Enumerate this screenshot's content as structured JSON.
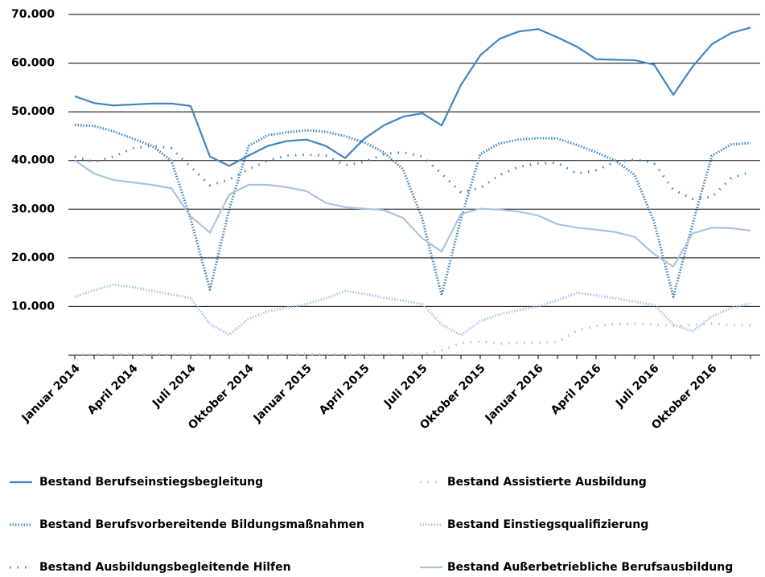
{
  "chart_data": {
    "type": "line",
    "categories": [
      "Januar 2014",
      null,
      null,
      "April 2014",
      null,
      null,
      "Juli 2014",
      null,
      null,
      "Oktober 2014",
      null,
      null,
      "Januar 2015",
      null,
      null,
      "April 2015",
      null,
      null,
      "Juli 2015",
      null,
      null,
      "Oktober 2015",
      null,
      null,
      "Januar 2016",
      null,
      null,
      "April 2016",
      null,
      null,
      "Juli 2016",
      null,
      null,
      "Oktober 2016",
      null,
      null
    ],
    "ylim": [
      0,
      70000
    ],
    "yticks": [
      {
        "value": 10000,
        "label": "10.000"
      },
      {
        "value": 20000,
        "label": "20.000"
      },
      {
        "value": 30000,
        "label": "30.000"
      },
      {
        "value": 40000,
        "label": "40.000"
      },
      {
        "value": 50000,
        "label": "50.000"
      },
      {
        "value": 60000,
        "label": "60.000"
      },
      {
        "value": 70000,
        "label": "70.000"
      }
    ],
    "grid": true,
    "series": [
      {
        "name": "Bestand Berufseinstiegsbegleitung",
        "color": "#3f86c1",
        "style": "solid",
        "values": [
          53200,
          51800,
          51300,
          51500,
          51700,
          51700,
          51200,
          40800,
          38900,
          41000,
          43000,
          44000,
          44300,
          43000,
          40500,
          44500,
          47200,
          49000,
          49700,
          47200,
          55500,
          61600,
          65000,
          66500,
          67000,
          65300,
          63400,
          60800,
          60700,
          60600,
          59700,
          53500,
          59300,
          63900,
          66200,
          67300
        ]
      },
      {
        "name": "Bestand Berufsvorbereitende Bildungsmaßnahmen",
        "color": "#3f86c1",
        "style": "dotted",
        "values": [
          47300,
          47100,
          46000,
          44500,
          43000,
          40000,
          28000,
          13500,
          30000,
          43000,
          45200,
          45800,
          46200,
          45900,
          45000,
          43700,
          41700,
          38200,
          28000,
          12300,
          28000,
          41300,
          43500,
          44300,
          44600,
          44500,
          43200,
          41700,
          40000,
          37000,
          27500,
          12000,
          27000,
          41000,
          43300,
          43600
        ]
      },
      {
        "name": "Bestand Ausbildungsbegleitende Hilfen",
        "color": "#3f86c1",
        "style": "sparse",
        "values": [
          40800,
          39700,
          40800,
          42500,
          43000,
          42500,
          38700,
          34900,
          36100,
          38200,
          40000,
          41000,
          41200,
          41000,
          39000,
          39700,
          41300,
          41700,
          40800,
          37300,
          33500,
          34300,
          37000,
          38700,
          39400,
          39500,
          37300,
          38000,
          39700,
          40200,
          39500,
          34000,
          32100,
          32500,
          36400,
          37600
        ]
      },
      {
        "name": "Bestand Assistierte Ausbildung",
        "color": "#a9c4e3",
        "style": "sparse",
        "values": [
          200,
          200,
          200,
          200,
          200,
          200,
          200,
          200,
          200,
          200,
          200,
          200,
          200,
          200,
          200,
          200,
          200,
          200,
          200,
          1000,
          2500,
          2800,
          2400,
          2500,
          2600,
          2700,
          5000,
          6000,
          6400,
          6500,
          6300,
          6000,
          6200,
          6500,
          6200,
          6100
        ]
      },
      {
        "name": "Bestand Einstiegsqualifizierung",
        "color": "#a9c4e3",
        "style": "dotted",
        "values": [
          12000,
          13300,
          14500,
          14000,
          13200,
          12500,
          11700,
          6400,
          4200,
          7500,
          9000,
          9800,
          10500,
          11700,
          13200,
          12600,
          11800,
          11200,
          10500,
          6300,
          4100,
          7000,
          8400,
          9300,
          10000,
          11300,
          12800,
          12300,
          11700,
          11000,
          10300,
          6300,
          4900,
          8000,
          9700,
          10700
        ]
      },
      {
        "name": "Bestand Außerbetriebliche Berufsausbildung",
        "color": "#a9c4e3",
        "style": "solid",
        "values": [
          40000,
          37300,
          36000,
          35500,
          35000,
          34300,
          28500,
          25200,
          33000,
          35000,
          35000,
          34500,
          33700,
          31300,
          30400,
          30100,
          29800,
          28200,
          24000,
          21300,
          29000,
          30100,
          29900,
          29500,
          28700,
          26900,
          26200,
          25800,
          25300,
          24300,
          20800,
          18200,
          25000,
          26200,
          26100,
          25600
        ]
      }
    ]
  }
}
